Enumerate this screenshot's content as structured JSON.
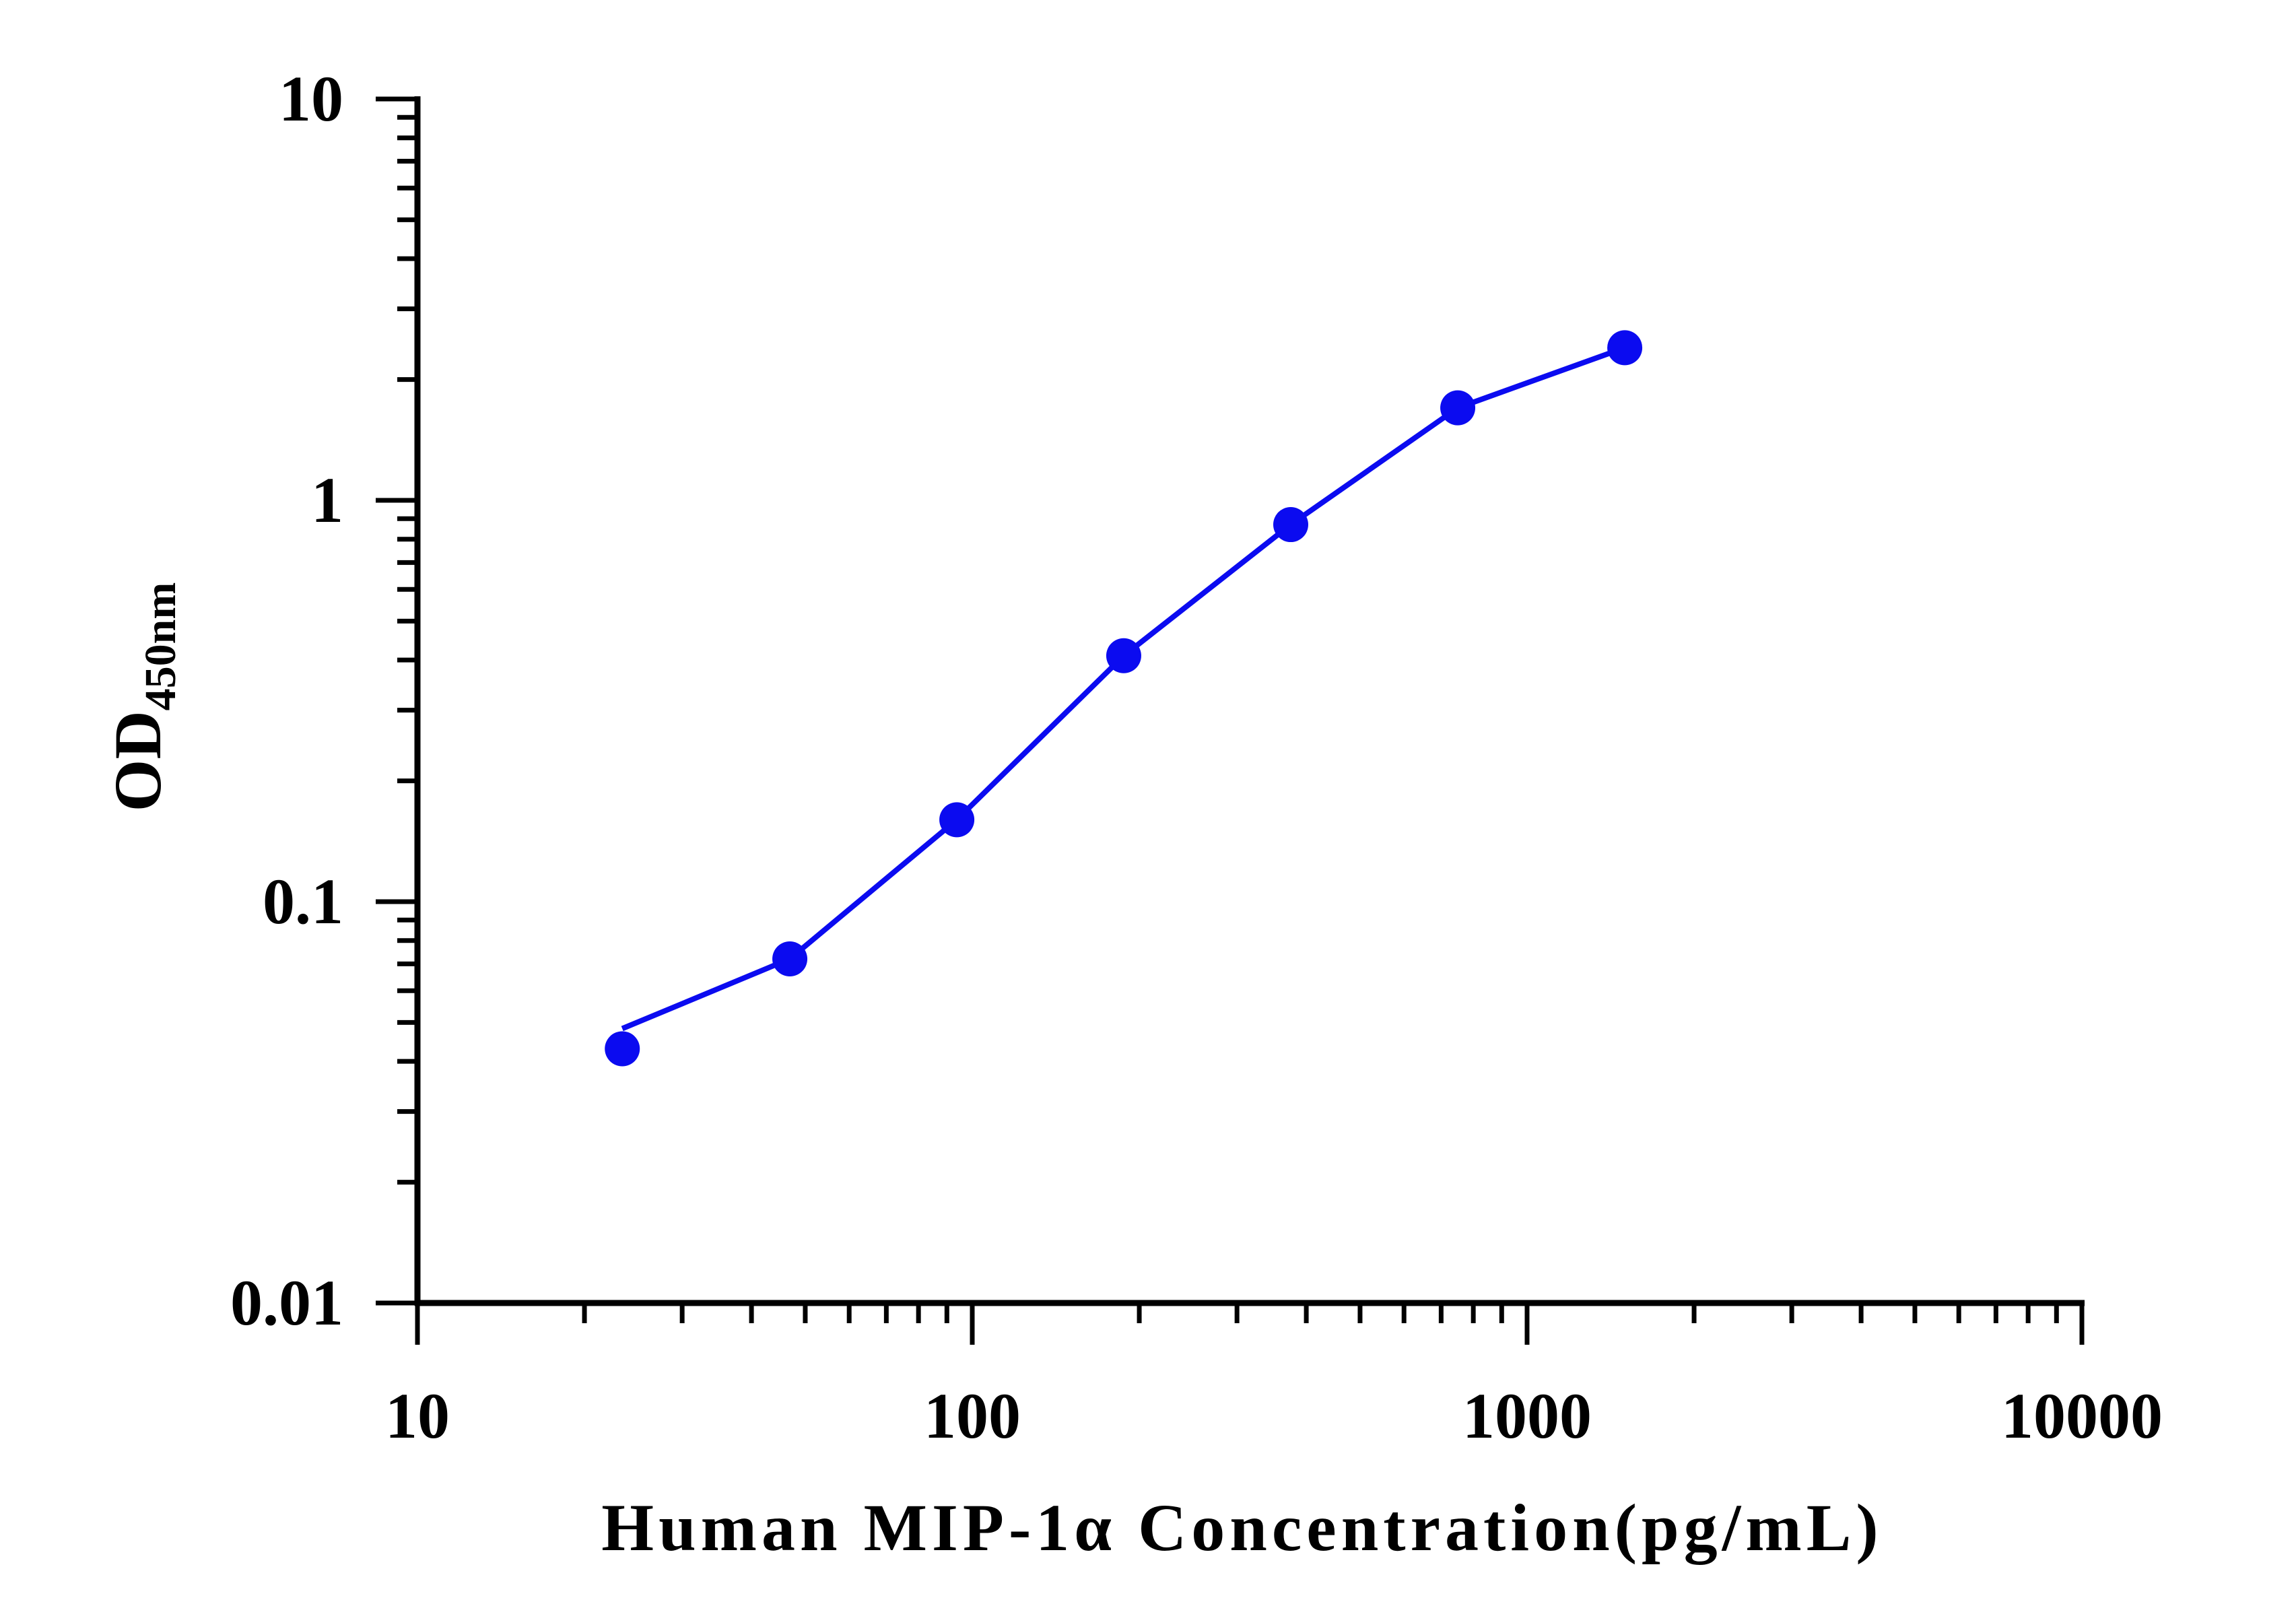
{
  "chart_data": {
    "type": "line",
    "xlabel": "Human MIP-1α Concentration(pg/mL)",
    "ylabel_main": "OD",
    "ylabel_sub": "450nm",
    "x_scale": "log",
    "y_scale": "log",
    "xlim": [
      10,
      10000
    ],
    "ylim": [
      0.01,
      10
    ],
    "x_ticks": [
      "10",
      "100",
      "1000",
      "10000"
    ],
    "y_ticks": [
      "0.01",
      "0.1",
      "1",
      "10"
    ],
    "grid": false,
    "series": [
      {
        "x": [
          23.4,
          46.9,
          93.8,
          187.5,
          375,
          750,
          1500
        ],
        "y": [
          0.043,
          0.072,
          0.16,
          0.41,
          0.87,
          1.7,
          2.4
        ]
      }
    ],
    "colors": {
      "series": "#0b0bf0",
      "axis": "#000000"
    }
  }
}
